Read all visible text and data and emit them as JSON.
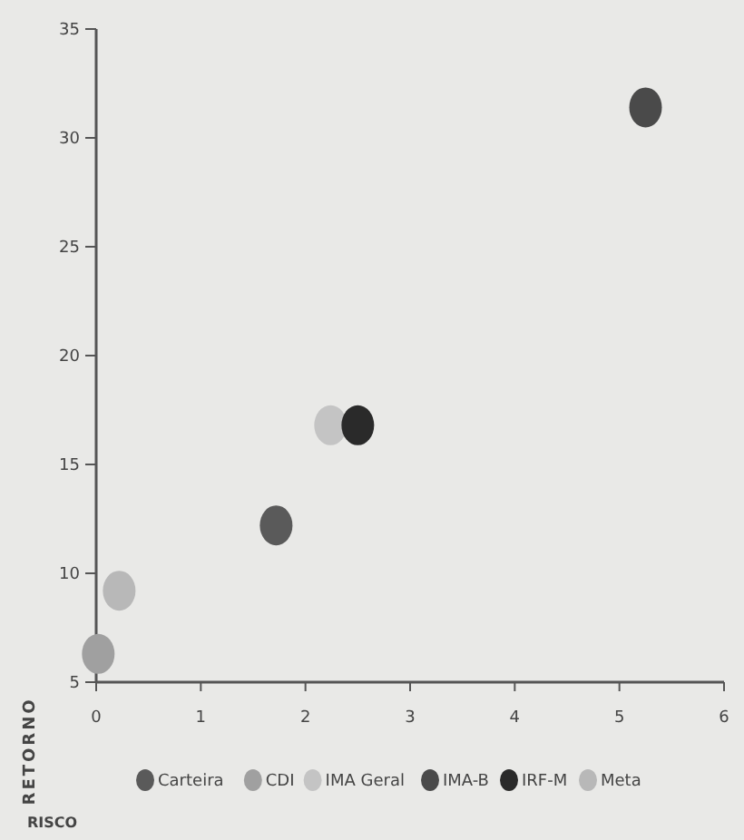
{
  "chart_data": {
    "type": "scatter",
    "annotations": [
      "RISCO"
    ],
    "ylabel": "RETORNO",
    "xlim": [
      0,
      6
    ],
    "ylim": [
      5,
      35
    ],
    "xticks": [
      0,
      1,
      2,
      3,
      4,
      5,
      6
    ],
    "yticks": [
      5,
      10,
      15,
      20,
      25,
      30,
      35
    ],
    "grid": false,
    "legend": "bottom",
    "marker": "circle",
    "series": [
      {
        "name": "Carteira",
        "color": "#5a5a5a",
        "x": [
          1.72
        ],
        "values": [
          12.2
        ]
      },
      {
        "name": "CDI",
        "color": "#a0a0a0",
        "x": [
          0.02
        ],
        "values": [
          6.3
        ]
      },
      {
        "name": "IMA Geral",
        "color": "#c4c4c4",
        "x": [
          2.24
        ],
        "values": [
          16.8
        ]
      },
      {
        "name": "IMA-B",
        "color": "#4a4a4a",
        "x": [
          5.25
        ],
        "values": [
          31.4
        ]
      },
      {
        "name": "IRF-M",
        "color": "#2a2a2a",
        "x": [
          2.5
        ],
        "values": [
          16.8
        ]
      },
      {
        "name": "Meta",
        "color": "#b8b8b8",
        "x": [
          0.22
        ],
        "values": [
          9.2
        ]
      }
    ]
  }
}
